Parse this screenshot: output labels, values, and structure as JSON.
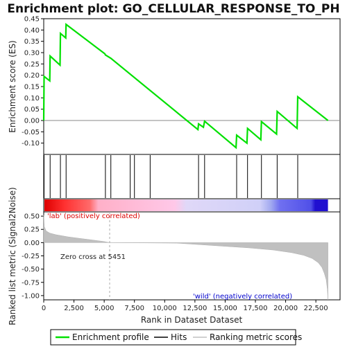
{
  "chart_data": {
    "type": "line",
    "title": "Enrichment plot: GO_CELLULAR_RESPONSE_TO_PH",
    "top_panel": {
      "ylabel": "Enrichment score (ES)",
      "ylim": [
        -0.15,
        0.45
      ],
      "yticks": [
        -0.1,
        -0.05,
        0.0,
        0.05,
        0.1,
        0.15,
        0.2,
        0.25,
        0.3,
        0.35,
        0.4,
        0.45
      ],
      "ytick_labels": [
        "-0.10",
        "-0.05",
        "0.00",
        "0.05",
        "0.10",
        "0.15",
        "0.20",
        "0.25",
        "0.30",
        "0.35",
        "0.40",
        "0.45"
      ],
      "series": [
        {
          "name": "Enrichment profile",
          "color": "#00e000",
          "x": [
            0,
            30,
            500,
            530,
            1350,
            1380,
            1820,
            1850,
            5050,
            5100,
            5550,
            12750,
            12800,
            13200,
            13300,
            15900,
            15950,
            16800,
            16850,
            17950,
            18000,
            19250,
            19300,
            20950,
            21000,
            23500
          ],
          "y": [
            0.0,
            0.195,
            0.175,
            0.285,
            0.245,
            0.385,
            0.365,
            0.425,
            0.295,
            0.29,
            0.275,
            -0.04,
            -0.015,
            -0.03,
            -0.003,
            -0.12,
            -0.065,
            -0.1,
            -0.035,
            -0.085,
            -0.005,
            -0.06,
            0.04,
            -0.035,
            0.105,
            0.0
          ]
        }
      ]
    },
    "hits": {
      "name": "Hits",
      "color": "#000000",
      "positions": [
        30,
        530,
        1380,
        1850,
        5100,
        5550,
        7150,
        7500,
        8800,
        12800,
        13300,
        15950,
        16850,
        18000,
        19300,
        21000
      ]
    },
    "bottom_panel": {
      "ylabel": "Ranked list metric (Signal2Noise)",
      "ylim": [
        -1.08,
        0.58
      ],
      "yticks": [
        -1.0,
        -0.75,
        -0.5,
        -0.25,
        0.0,
        0.25,
        0.5
      ],
      "ytick_labels": [
        "-1.00",
        "-0.75",
        "-0.50",
        "-0.25",
        "0.00",
        "0.25",
        "0.50"
      ],
      "series_name": "Ranking metric scores",
      "color": "#c0c0c0",
      "x": [
        0,
        50,
        200,
        500,
        1000,
        2000,
        3000,
        4000,
        5000,
        5451,
        11000,
        13000,
        15000,
        17000,
        19000,
        20500,
        21500,
        22200,
        22700,
        23000,
        23200,
        23350,
        23450,
        23500
      ],
      "y": [
        0.52,
        0.3,
        0.22,
        0.18,
        0.15,
        0.11,
        0.08,
        0.05,
        0.02,
        0.0,
        -0.01,
        -0.04,
        -0.07,
        -0.1,
        -0.14,
        -0.19,
        -0.24,
        -0.3,
        -0.38,
        -0.47,
        -0.58,
        -0.7,
        -0.88,
        -1.08
      ]
    },
    "xaxis": {
      "xlabel": "Rank in Dataset Dataset",
      "xlim": [
        0,
        24500
      ],
      "data_max": 23500,
      "xticks": [
        0,
        2500,
        5000,
        7500,
        10000,
        12500,
        15000,
        17500,
        20000,
        22500
      ],
      "xtick_labels": [
        "0",
        "2,500",
        "5,000",
        "7,500",
        "10,000",
        "12,500",
        "15,000",
        "17,500",
        "20,000",
        "22,500"
      ]
    },
    "zero_cross": {
      "rank": 5451,
      "label": "Zero cross at 5451"
    },
    "annotations": {
      "positive": {
        "text": "'lab' (positively correlated)",
        "color": "#dd0000"
      },
      "negative": {
        "text": "'wild' (negatively correlated)",
        "color": "#0000cc"
      }
    },
    "legend": [
      {
        "label": "Enrichment profile",
        "color": "#00e000",
        "kind": "line"
      },
      {
        "label": "Hits",
        "color": "#000000",
        "kind": "line"
      },
      {
        "label": "Ranking metric scores",
        "color": "#c0c0c0",
        "kind": "line"
      }
    ]
  }
}
